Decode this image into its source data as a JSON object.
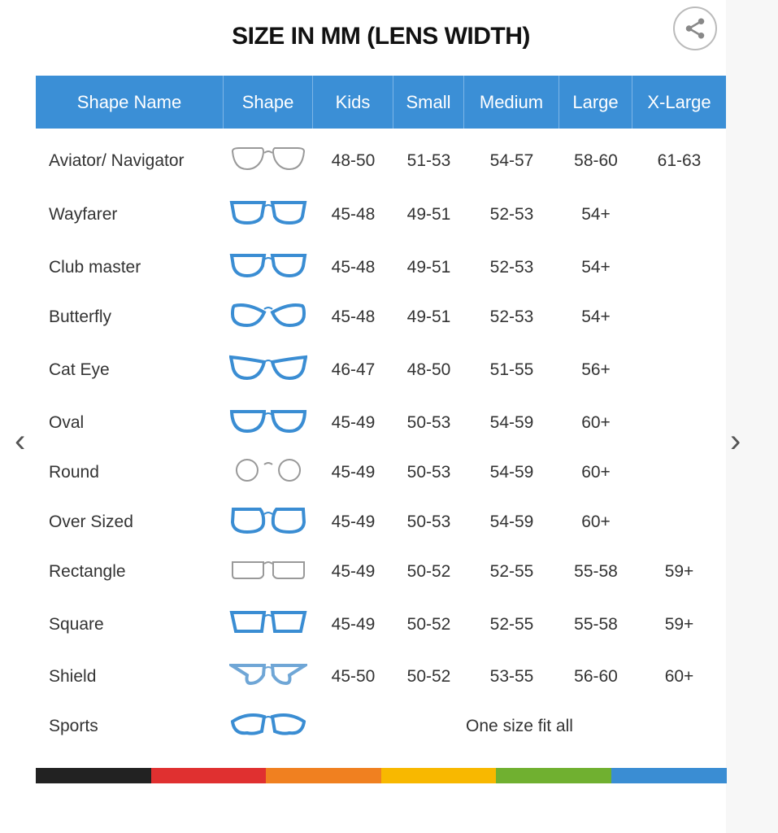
{
  "title": "SIZE IN MM (LENS WIDTH)",
  "columns": [
    "Shape Name",
    "Shape",
    "Kids",
    "Small",
    "Medium",
    "Large",
    "X-Large"
  ],
  "rows": [
    {
      "name": "Aviator/ Navigator",
      "icon": "aviator",
      "color": "#999999",
      "sizes": [
        "48-50",
        "51-53",
        "54-57",
        "58-60",
        "61-63"
      ]
    },
    {
      "name": "Wayfarer",
      "icon": "wayfarer",
      "color": "#3a8dd3",
      "sizes": [
        "45-48",
        "49-51",
        "52-53",
        "54+",
        ""
      ]
    },
    {
      "name": "Club master",
      "icon": "clubmaster",
      "color": "#3a8dd3",
      "sizes": [
        "45-48",
        "49-51",
        "52-53",
        "54+",
        ""
      ]
    },
    {
      "name": "Butterfly",
      "icon": "butterfly",
      "color": "#3a8dd3",
      "sizes": [
        "45-48",
        "49-51",
        "52-53",
        "54+",
        ""
      ]
    },
    {
      "name": "Cat Eye",
      "icon": "cateye",
      "color": "#3a8dd3",
      "sizes": [
        "46-47",
        "48-50",
        "51-55",
        "56+",
        ""
      ]
    },
    {
      "name": "Oval",
      "icon": "oval",
      "color": "#3a8dd3",
      "sizes": [
        "45-49",
        "50-53",
        "54-59",
        "60+",
        ""
      ]
    },
    {
      "name": "Round",
      "icon": "round",
      "color": "#999999",
      "sizes": [
        "45-49",
        "50-53",
        "54-59",
        "60+",
        ""
      ]
    },
    {
      "name": "Over Sized",
      "icon": "oversized",
      "color": "#3a8dd3",
      "sizes": [
        "45-49",
        "50-53",
        "54-59",
        "60+",
        ""
      ]
    },
    {
      "name": "Rectangle",
      "icon": "rectangle",
      "color": "#999999",
      "sizes": [
        "45-49",
        "50-52",
        "52-55",
        "55-58",
        "59+"
      ]
    },
    {
      "name": "Square",
      "icon": "square",
      "color": "#3a8dd3",
      "sizes": [
        "45-49",
        "50-52",
        "52-55",
        "55-58",
        "59+"
      ]
    },
    {
      "name": "Shield",
      "icon": "shield",
      "color": "#6fa6d6",
      "sizes": [
        "45-50",
        "50-52",
        "53-55",
        "56-60",
        "60+"
      ]
    },
    {
      "name": "Sports",
      "icon": "sports",
      "color": "#3a8dd3",
      "span": "One size fit all"
    }
  ],
  "color_bar": [
    "#222222",
    "#e03030",
    "#f08020",
    "#f8b800",
    "#70b030",
    "#3a8dd3"
  ],
  "icons": {
    "share": "share-icon",
    "prev": "chevron-left-icon",
    "next": "chevron-right-icon"
  },
  "nav": {
    "prev": "‹",
    "next": "›"
  }
}
